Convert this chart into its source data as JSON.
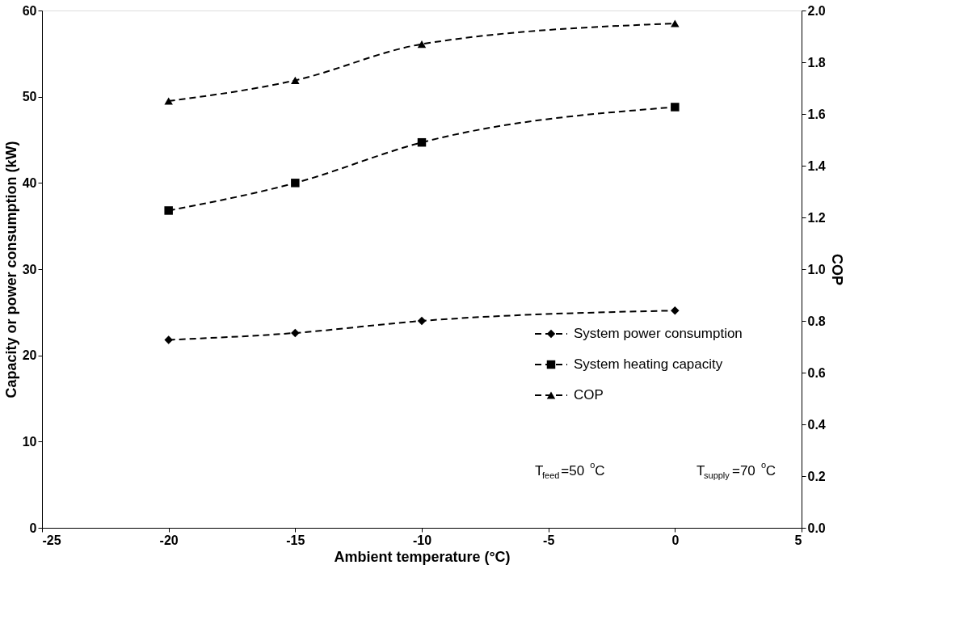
{
  "chart_data": {
    "type": "line",
    "xlabel": "Ambient temperature (°C)",
    "ylabel": "Capacity or power consumption (kW)",
    "y2label": "COP",
    "x": [
      -20,
      -15,
      -10,
      0
    ],
    "series": [
      {
        "name": "System power consumption",
        "color": "#000000",
        "marker": "diamond",
        "values": [
          21.8,
          22.6,
          24.0,
          25.2
        ]
      },
      {
        "name": "System heating capacity",
        "color": "#000000",
        "marker": "square",
        "values": [
          36.8,
          40.0,
          44.7,
          48.8
        ]
      },
      {
        "name": "COP",
        "color": "#000000",
        "marker": "triangle",
        "axis": "y2",
        "values": [
          1.65,
          1.73,
          1.87,
          1.95
        ]
      }
    ],
    "xlim": [
      -25,
      5
    ],
    "xticks": [
      -25,
      -20,
      -15,
      -10,
      -5,
      0,
      5
    ],
    "ylim": [
      0,
      60
    ],
    "yticks": [
      0,
      10,
      20,
      30,
      40,
      50,
      60
    ],
    "y2lim": [
      0,
      2
    ],
    "y2ticks": [
      {
        "value": 0,
        "label": "0.0"
      },
      {
        "value": 0.2,
        "label": "0.2"
      },
      {
        "value": 0.4,
        "label": "0.4"
      },
      {
        "value": 0.6,
        "label": "0.6"
      },
      {
        "value": 0.8,
        "label": "0.8"
      },
      {
        "value": 1,
        "label": "1.0"
      },
      {
        "value": 1.2,
        "label": "1.2"
      },
      {
        "value": 1.4,
        "label": "1.4"
      },
      {
        "value": 1.6,
        "label": "1.6"
      },
      {
        "value": 1.8,
        "label": "1.8"
      },
      {
        "value": 2,
        "label": "2.0"
      }
    ],
    "line_style": "dashed",
    "grid": false,
    "legend": "bottom right",
    "annotations": [
      "T$_{feed}$=50 $^{o}$C",
      "T$_{supply}$=70 $^{o}$C"
    ]
  }
}
